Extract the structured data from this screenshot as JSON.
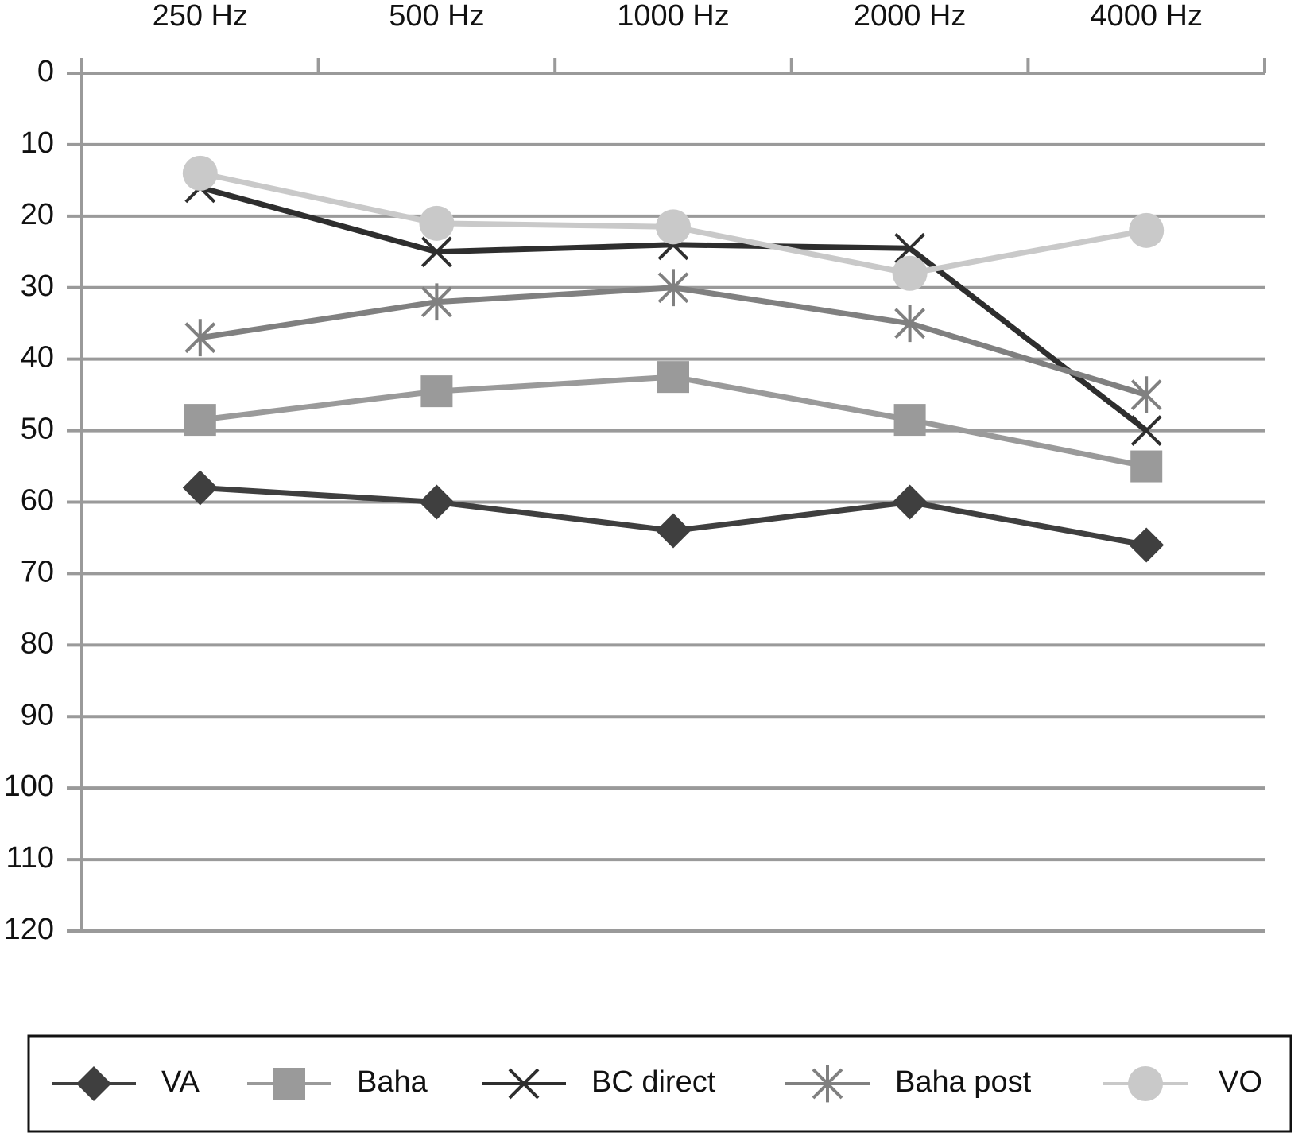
{
  "chart_data": {
    "type": "line",
    "categories": [
      "250 Hz",
      "500 Hz",
      "1000 Hz",
      "2000 Hz",
      "4000 Hz"
    ],
    "series": [
      {
        "name": "VA",
        "color": "#3f3f3f",
        "marker": "diamond",
        "values": [
          58,
          60,
          64,
          60,
          66
        ]
      },
      {
        "name": "Baha",
        "color": "#9a9a9a",
        "marker": "square",
        "values": [
          48.5,
          44.5,
          42.5,
          48.5,
          55
        ]
      },
      {
        "name": "BC direct",
        "color": "#2e2e2e",
        "marker": "x",
        "values": [
          16,
          25,
          24,
          24.5,
          50
        ]
      },
      {
        "name": "Baha post",
        "color": "#808080",
        "marker": "asterisk",
        "values": [
          37,
          32,
          30,
          35,
          45
        ]
      },
      {
        "name": "VO",
        "color": "#c9c9c9",
        "marker": "circle",
        "values": [
          14,
          21,
          21.5,
          28,
          22
        ]
      }
    ],
    "ylim": [
      0,
      120
    ],
    "yticks": [
      0,
      10,
      20,
      30,
      40,
      50,
      60,
      70,
      80,
      90,
      100,
      110,
      120
    ],
    "y_reversed": true,
    "grid": true,
    "legend": "bottom"
  }
}
